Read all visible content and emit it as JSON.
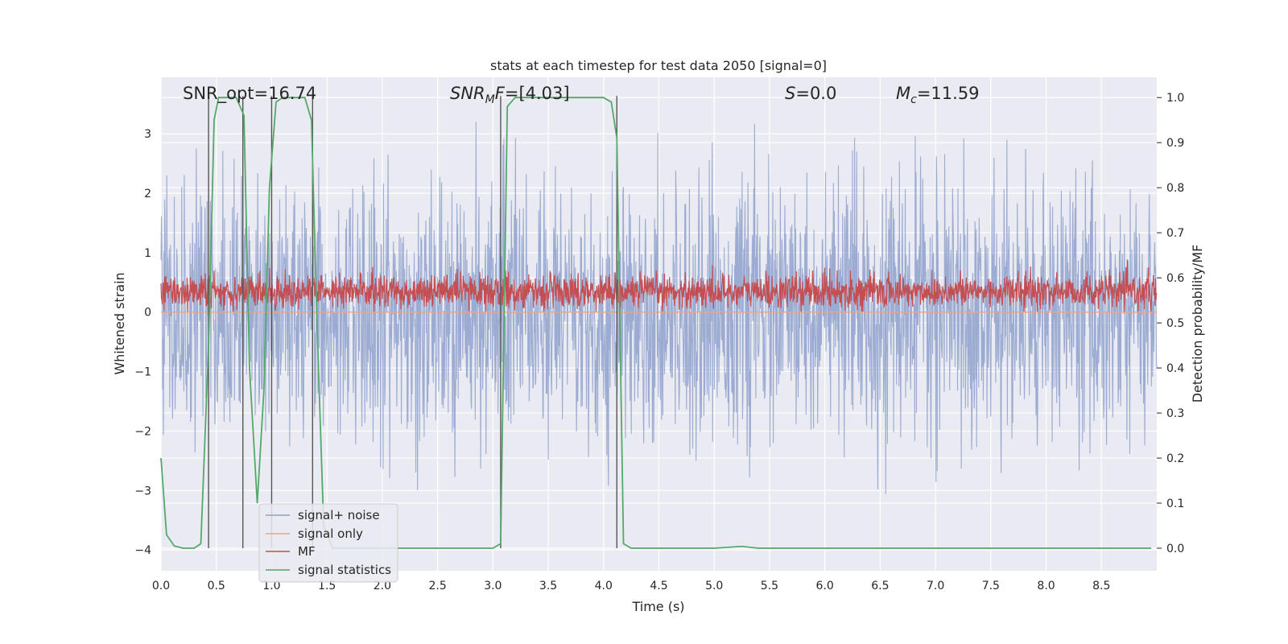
{
  "chart_data": {
    "type": "line",
    "title": "stats at each timestep for test data 2050 [signal=0]",
    "xlabel": "Time (s)",
    "ylabel": "Whitened strain",
    "ylabel_right": "Detection probability/MF",
    "xlim": [
      0,
      9.0
    ],
    "ylim": [
      -4.35,
      3.95
    ],
    "ylim_right": [
      -0.05,
      1.045
    ],
    "x_ticks": [
      "0.0",
      "0.5",
      "1.0",
      "1.5",
      "2.0",
      "2.5",
      "3.0",
      "3.5",
      "4.0",
      "4.5",
      "5.0",
      "5.5",
      "6.0",
      "6.5",
      "7.0",
      "7.5",
      "8.0",
      "8.5"
    ],
    "y_ticks": [
      "3",
      "2",
      "1",
      "0",
      "−1",
      "−2",
      "−3",
      "−4"
    ],
    "y_right_ticks": [
      "1.0",
      "0.9",
      "0.8",
      "0.7",
      "0.6",
      "0.5",
      "0.4",
      "0.3",
      "0.2",
      "0.1",
      "0.0"
    ],
    "grid": true,
    "legend_placement": "lower-left",
    "annotations": [
      {
        "id": "snr-opt",
        "text": "SNR_opt=16.74"
      },
      {
        "id": "snr-mf",
        "text": "[4.03]"
      },
      {
        "id": "s-stat",
        "text": "=0.0"
      },
      {
        "id": "mc",
        "text": "=11.59"
      }
    ],
    "series": [
      {
        "name": "signal+ noise",
        "color": "#8da0cb",
        "description_values": {
          "center": 0.0,
          "typical_amplitude": 1.8,
          "max": 3.2,
          "min": -3.8
        }
      },
      {
        "name": "signal only",
        "color": "#e8a587",
        "values_constant": 0.0
      },
      {
        "name": "MF",
        "color": "#c44e52",
        "description_values": {
          "center": 0.35,
          "min": 0.0,
          "max": 1.0
        }
      },
      {
        "name": "signal statistics",
        "color": "#55a868",
        "x": [
          0.0,
          0.05,
          0.12,
          0.2,
          0.3,
          0.36,
          0.43,
          0.48,
          0.52,
          0.6,
          0.68,
          0.75,
          0.8,
          0.87,
          0.93,
          0.98,
          1.04,
          1.1,
          1.2,
          1.3,
          1.36,
          1.41,
          1.47,
          1.55,
          2.0,
          2.5,
          3.0,
          3.07,
          3.13,
          3.2,
          3.5,
          4.0,
          4.07,
          4.12,
          4.18,
          4.25,
          4.5,
          5.0,
          5.25,
          5.4,
          6.0,
          7.0,
          8.0,
          8.95
        ],
        "values": [
          0.2,
          0.03,
          0.005,
          0.0,
          0.0,
          0.01,
          0.45,
          0.95,
          1.0,
          1.0,
          1.0,
          0.96,
          0.4,
          0.1,
          0.35,
          0.8,
          0.99,
          1.0,
          1.0,
          1.0,
          0.95,
          0.5,
          0.05,
          0.0,
          0.0,
          0.0,
          0.0,
          0.01,
          0.98,
          1.0,
          1.0,
          1.0,
          0.99,
          0.91,
          0.01,
          0.0,
          0.0,
          0.0,
          0.004,
          0.0,
          0.0,
          0.0,
          0.0,
          0.0
        ]
      },
      {
        "name": "",
        "color": "#555555",
        "type": "vlines",
        "x": [
          0.43,
          0.74,
          1.0,
          1.37,
          3.07,
          4.12
        ]
      }
    ]
  },
  "legend": [
    {
      "label": "signal+ noise",
      "color": "#8da0cb"
    },
    {
      "label": "signal only",
      "color": "#e8a587"
    },
    {
      "label": "MF",
      "color": "#c44e52"
    },
    {
      "label": "signal statistics",
      "color": "#55a868"
    }
  ],
  "annotation_parts": {
    "snr_mf_prefix_main": "SNR",
    "snr_mf_prefix_sub": "M",
    "snr_mf_prefix_tail": "F",
    "s_symbol": "S",
    "mc_symbol": "M",
    "mc_sub": "c"
  }
}
